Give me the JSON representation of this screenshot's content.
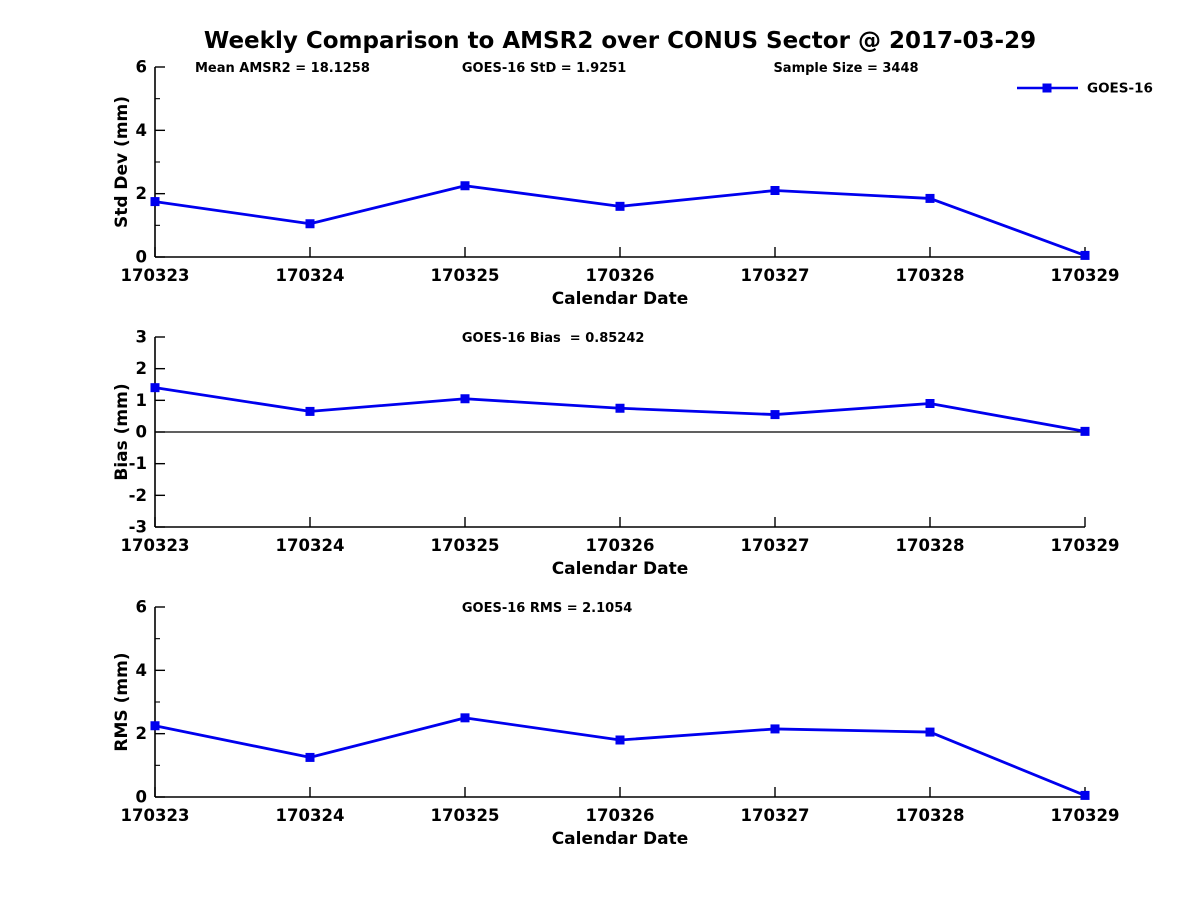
{
  "figure_title": "Weekly Comparison to AMSR2 over CONUS Sector @ 2017-03-29",
  "colors": {
    "series_line": "#0000EE",
    "axis": "#000000",
    "text": "#000000",
    "background": "#FFFFFF"
  },
  "chart_data": [
    {
      "type": "line",
      "name": "std-dev",
      "categories": [
        "170323",
        "170324",
        "170325",
        "170326",
        "170327",
        "170328",
        "170329"
      ],
      "series": [
        {
          "name": "GOES-16",
          "values": [
            1.75,
            1.05,
            2.25,
            1.6,
            2.1,
            1.85,
            0.05
          ]
        }
      ],
      "annotations": [
        {
          "text": "Mean AMSR2 = 18.1258",
          "xfrac": 0.043
        },
        {
          "text": "GOES-16 StD = 1.9251",
          "xfrac": 0.33
        },
        {
          "text": "Sample Size = 3448",
          "xfrac": 0.665
        }
      ],
      "xlabel": "Calendar Date",
      "ylabel": "Std Dev (mm)",
      "ylim": [
        0,
        6
      ],
      "yticks": [
        0,
        2,
        4,
        6
      ],
      "yminorticks": [
        1,
        3,
        5
      ],
      "zero_line": false,
      "grid": false,
      "legend": {
        "label": "GOES-16",
        "position": "top-right"
      }
    },
    {
      "type": "line",
      "name": "bias",
      "categories": [
        "170323",
        "170324",
        "170325",
        "170326",
        "170327",
        "170328",
        "170329"
      ],
      "series": [
        {
          "name": "GOES-16",
          "values": [
            1.4,
            0.65,
            1.05,
            0.75,
            0.55,
            0.9,
            0.02
          ]
        }
      ],
      "annotations": [
        {
          "text": "GOES-16 Bias  = 0.85242",
          "xfrac": 0.33
        }
      ],
      "xlabel": "Calendar Date",
      "ylabel": "Bias (mm)",
      "ylim": [
        -3,
        3
      ],
      "yticks": [
        -3,
        -2,
        -1,
        0,
        1,
        2,
        3
      ],
      "yminorticks": [],
      "zero_line": true,
      "grid": false,
      "legend": null
    },
    {
      "type": "line",
      "name": "rms",
      "categories": [
        "170323",
        "170324",
        "170325",
        "170326",
        "170327",
        "170328",
        "170329"
      ],
      "series": [
        {
          "name": "GOES-16",
          "values": [
            2.25,
            1.25,
            2.5,
            1.8,
            2.15,
            2.05,
            0.05
          ]
        }
      ],
      "annotations": [
        {
          "text": "GOES-16 RMS = 2.1054",
          "xfrac": 0.33
        }
      ],
      "xlabel": "Calendar Date",
      "ylabel": "RMS (mm)",
      "ylim": [
        0,
        6
      ],
      "yticks": [
        0,
        2,
        4,
        6
      ],
      "yminorticks": [
        1,
        3,
        5
      ],
      "zero_line": false,
      "grid": false,
      "legend": null
    }
  ]
}
